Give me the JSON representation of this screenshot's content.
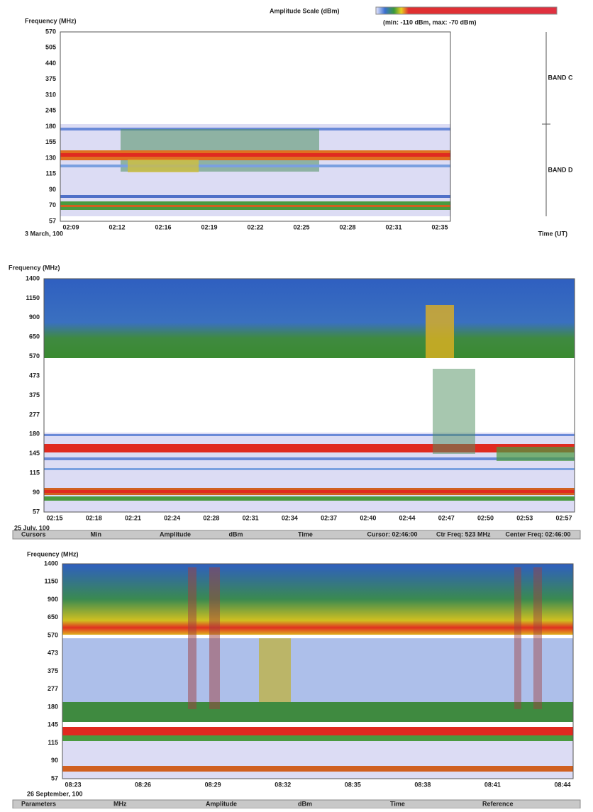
{
  "header": {
    "amplitude_title": "Amplitude Scale (dBm)",
    "amplitude_range": "(min: -110 dBm, max: -70 dBm)"
  },
  "panels": [
    {
      "y_title": "Frequency (MHz)",
      "y_labels": [
        "570",
        "505",
        "440",
        "375",
        "310",
        "245",
        "180",
        "155",
        "130",
        "115",
        "90",
        "70",
        "57"
      ],
      "x_labels": [
        "02:09",
        "02:12",
        "02:16",
        "02:19",
        "02:22",
        "02:25",
        "02:28",
        "02:31",
        "02:35"
      ],
      "date": "3 March, 100",
      "x_title": "Time (UT)",
      "bands": [
        "BAND C",
        "BAND D"
      ]
    },
    {
      "y_title": "Frequency (MHz)",
      "y_labels": [
        "1400",
        "1150",
        "900",
        "650",
        "570",
        "473",
        "375",
        "277",
        "180",
        "145",
        "115",
        "90",
        "57"
      ],
      "x_labels": [
        "02:15",
        "02:18",
        "02:21",
        "02:24",
        "02:28",
        "02:31",
        "02:34",
        "02:37",
        "02:40",
        "02:44",
        "02:47",
        "02:50",
        "02:53",
        "02:57"
      ],
      "date": "25 July, 100",
      "status": [
        "Cursors",
        "Min",
        "Amplitude",
        "dBm",
        "Time",
        "Cursor: 02:46:00",
        "Ctr Freq: 523 MHz",
        "Center Freq: 02:46:00"
      ]
    },
    {
      "y_title": "Frequency (MHz)",
      "y_labels": [
        "1400",
        "1150",
        "900",
        "650",
        "570",
        "473",
        "375",
        "277",
        "180",
        "145",
        "115",
        "90",
        "57"
      ],
      "x_labels": [
        "08:23",
        "08:26",
        "08:29",
        "08:32",
        "08:35",
        "08:38",
        "08:41",
        "08:44"
      ],
      "date": "26 September, 100",
      "status": [
        "Parameters",
        "MHz",
        "Amplitude",
        "dBm",
        "Time",
        "Reference"
      ]
    }
  ]
}
